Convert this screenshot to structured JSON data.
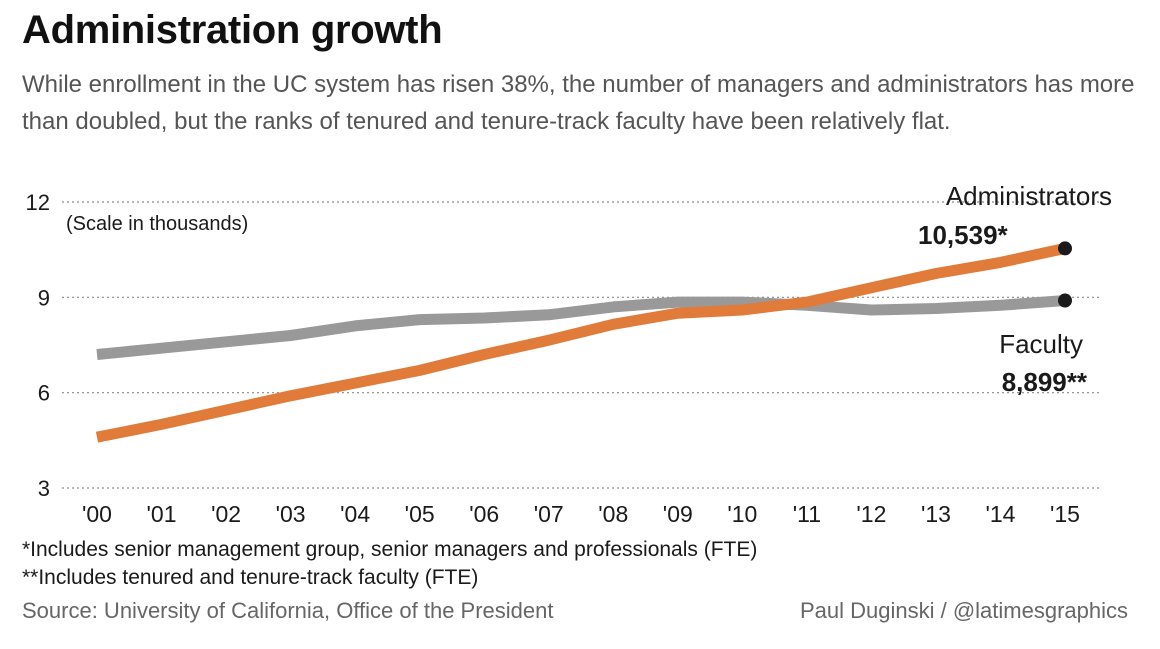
{
  "header": {
    "title": "Administration growth",
    "subtitle": "While enrollment in the UC system has risen 38%, the number of managers and administrators has more than doubled, but the ranks of tenured and tenure-track faculty have been relatively flat."
  },
  "chart_data": {
    "type": "line",
    "scale_note": "(Scale in thousands)",
    "categories": [
      "'00",
      "'01",
      "'02",
      "'03",
      "'04",
      "'05",
      "'06",
      "'07",
      "'08",
      "'09",
      "'10",
      "'11",
      "'12",
      "'13",
      "'14",
      "'15"
    ],
    "ylim": [
      3,
      12
    ],
    "yticks": [
      3,
      6,
      9,
      12
    ],
    "grid": "horizontal dotted",
    "series": [
      {
        "name": "Faculty",
        "value_label": "8,899**",
        "color": "#999999",
        "values": [
          7.2,
          7.4,
          7.6,
          7.8,
          8.1,
          8.3,
          8.35,
          8.45,
          8.7,
          8.85,
          8.85,
          8.75,
          8.6,
          8.65,
          8.75,
          8.899
        ]
      },
      {
        "name": "Administrators",
        "value_label": "10,539*",
        "color": "#e07b39",
        "values": [
          4.6,
          5.0,
          5.45,
          5.9,
          6.3,
          6.7,
          7.2,
          7.65,
          8.15,
          8.5,
          8.6,
          8.85,
          9.3,
          9.75,
          10.1,
          10.539
        ]
      }
    ]
  },
  "footer": {
    "note1": "*Includes senior management group, senior managers and professionals (FTE)",
    "note2": "**Includes tenured and tenure-track faculty (FTE)",
    "source": "Source: University of California, Office of the President",
    "credit": "Paul Duginski / @latimesgraphics"
  }
}
